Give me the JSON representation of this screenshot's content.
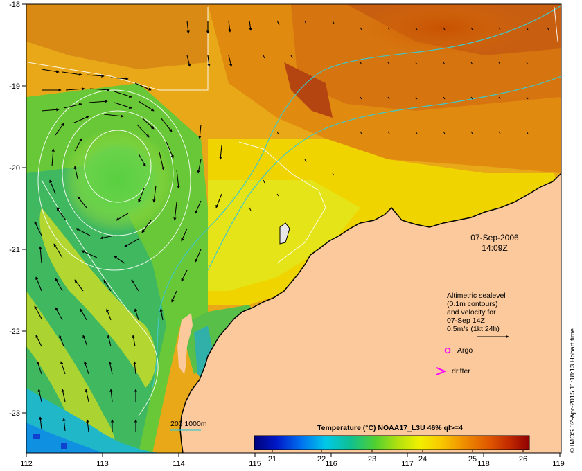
{
  "map": {
    "lon_ticks": [
      "112",
      "113",
      "114",
      "115",
      "116",
      "117",
      "118",
      "119"
    ],
    "lat_ticks": [
      "-18",
      "-19",
      "-20",
      "-21",
      "-22",
      "-23"
    ],
    "date": "07-Sep-2006",
    "time": "14:09Z",
    "legend_text": [
      "Altimetric sealevel",
      "(0.1m contours)",
      "and velocity for",
      "07-Sep 14Z",
      "0.5m/s (1kt 24h)"
    ],
    "argo_label": "Argo",
    "drifter_label": "drifter",
    "isobath_label": "200  1000m",
    "colorbar_title": "Temperature (°C) NOAA17_L3U 46% ql>=4",
    "colorbar_ticks": [
      "21",
      "22",
      "23",
      "24",
      "25",
      "26"
    ],
    "credit": "© IMOS 02-Apr-2015 11:18:13 Hobart time",
    "colors": {
      "land": "#fbc99b",
      "contour": "#ffffff",
      "isobath": "#40c8c8",
      "argo": "#ff00ff",
      "drifter": "#ff00ff"
    }
  }
}
